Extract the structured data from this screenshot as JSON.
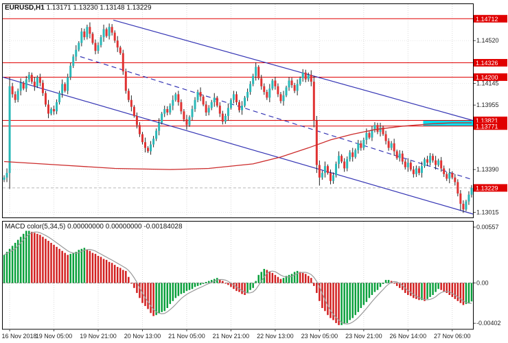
{
  "header": {
    "symbol_period": "EURUSD,H1",
    "quote_line": "1.13171 1.13230 1.13148 1.13229"
  },
  "chart_data": [
    {
      "type": "candlestick",
      "title": "EURUSD,H1",
      "quote_line": "1.13171 1.13230 1.13148 1.13229",
      "quote": {
        "open": "1.13171",
        "high": "1.13230",
        "low": "1.13148",
        "close": "1.13229"
      },
      "ylim": [
        1.1297,
        1.1484
      ],
      "first_open": 1.133,
      "closes": [
        1.1332,
        1.1336,
        1.1412,
        1.1405,
        1.14,
        1.1408,
        1.1415,
        1.141,
        1.1418,
        1.1422,
        1.1416,
        1.1412,
        1.142,
        1.1415,
        1.1406,
        1.1396,
        1.1388,
        1.1392,
        1.139,
        1.1398,
        1.1406,
        1.1414,
        1.1408,
        1.142,
        1.143,
        1.1438,
        1.1444,
        1.145,
        1.146,
        1.1455,
        1.1464,
        1.1458,
        1.145,
        1.1443,
        1.1448,
        1.1455,
        1.1462,
        1.1456,
        1.1464,
        1.1459,
        1.1452,
        1.1446,
        1.1441,
        1.1425,
        1.1408,
        1.14,
        1.1394,
        1.1386,
        1.1378,
        1.137,
        1.1363,
        1.1358,
        1.1355,
        1.1361,
        1.1366,
        1.1373,
        1.138,
        1.1388,
        1.1392,
        1.1389,
        1.1395,
        1.14,
        1.1405,
        1.1398,
        1.139,
        1.1383,
        1.1378,
        1.1385,
        1.1392,
        1.14,
        1.1407,
        1.1403,
        1.1396,
        1.1389,
        1.1393,
        1.1398,
        1.1402,
        1.1395,
        1.1388,
        1.1381,
        1.1386,
        1.1393,
        1.14,
        1.1405,
        1.1398,
        1.1391,
        1.1395,
        1.1402,
        1.1407,
        1.1414,
        1.1421,
        1.1429,
        1.1419,
        1.1412,
        1.1407,
        1.1402,
        1.141,
        1.1417,
        1.1412,
        1.1405,
        1.1399,
        1.1404,
        1.1411,
        1.1417,
        1.1413,
        1.1408,
        1.1414,
        1.1419,
        1.1424,
        1.1418,
        1.1422,
        1.1416,
        1.1382,
        1.1343,
        1.1332,
        1.1336,
        1.1342,
        1.1336,
        1.1329,
        1.1334,
        1.1344,
        1.1351,
        1.1346,
        1.134,
        1.1348,
        1.1354,
        1.135,
        1.1356,
        1.1362,
        1.1358,
        1.1365,
        1.1371,
        1.1367,
        1.1374,
        1.1378,
        1.1372,
        1.1376,
        1.137,
        1.1364,
        1.1358,
        1.1362,
        1.1355,
        1.1349,
        1.1353,
        1.1346,
        1.1341,
        1.1345,
        1.1339,
        1.1335,
        1.134,
        1.1336,
        1.1342,
        1.1348,
        1.1345,
        1.1351,
        1.1347,
        1.1343,
        1.1347,
        1.134,
        1.1335,
        1.1331,
        1.1336,
        1.1332,
        1.1328,
        1.1318,
        1.1309,
        1.1304,
        1.1311,
        1.1317,
        1.13229
      ],
      "special_bars": {
        "2": [
          1.1336,
          1.142,
          1.1322,
          1.1412
        ],
        "112": [
          1.1416,
          1.1421,
          1.1376,
          1.1382
        ],
        "113": [
          1.1382,
          1.1386,
          1.1336,
          1.1343
        ],
        "114": [
          1.1343,
          1.1347,
          1.1325,
          1.1332
        ],
        "165": [
          1.1318,
          1.1321,
          1.1303,
          1.1309
        ],
        "166": [
          1.1309,
          1.1312,
          1.1301,
          1.1304
        ]
      },
      "wick_pattern": [
        0.0002,
        0.0004,
        0.00015,
        0.0003,
        0.00025
      ],
      "bull_color": "#2ab8b8",
      "bear_color": "#e03232",
      "wick_color": "#222222",
      "level_color": "#e00000",
      "trend_color": "#3434b4",
      "levels": [
        {
          "price": 1.14712,
          "label": "1.14712"
        },
        {
          "price": 1.14326,
          "label": "1.14326"
        },
        {
          "price": 1.142,
          "label": "1.14200"
        },
        {
          "price": 1.13821,
          "label": "1.13821"
        },
        {
          "price": 1.13771,
          "label": "1.13771"
        }
      ],
      "current_price": {
        "price": 1.13229,
        "label": "1.13229"
      },
      "axis_labels": [
        {
          "price": 1.1452,
          "label": "1.14520"
        },
        {
          "price": 1.14145,
          "label": "1.14145"
        },
        {
          "price": 1.13955,
          "label": "1.13955"
        },
        {
          "price": 1.1339,
          "label": "1.13390"
        },
        {
          "price": 1.13015,
          "label": "1.13015"
        }
      ],
      "ma": {
        "name": "moving-average",
        "color": "#cc2a2a",
        "points": [
          [
            0,
            1.1346
          ],
          [
            20,
            1.1343
          ],
          [
            40,
            1.134
          ],
          [
            60,
            1.1339
          ],
          [
            74,
            1.134
          ],
          [
            90,
            1.1344
          ],
          [
            100,
            1.135
          ],
          [
            110,
            1.1358
          ],
          [
            118,
            1.1365
          ],
          [
            126,
            1.137
          ],
          [
            134,
            1.1374
          ],
          [
            144,
            1.1377
          ],
          [
            154,
            1.1379
          ],
          [
            162,
            1.138
          ],
          [
            169,
            1.138
          ]
        ]
      },
      "trendlines": [
        {
          "from": [
            40,
            1.147
          ],
          "to": [
            170,
            1.1382
          ],
          "dash": false
        },
        {
          "from": [
            28,
            1.1438
          ],
          "to": [
            170,
            1.133
          ],
          "dash": true
        },
        {
          "from": [
            0,
            1.142
          ],
          "to": [
            170,
            1.13
          ],
          "dash": false
        }
      ],
      "band": {
        "from_bar": 152,
        "to_bar": 170,
        "p1": 1.13821,
        "p2": 1.13771,
        "color": "#00dff0"
      },
      "time_ticks": [
        {
          "bar": 2,
          "label": "16 Nov 2018"
        },
        {
          "bar": 18,
          "label": "19 Nov 05:00"
        },
        {
          "bar": 34,
          "label": "19 Nov 21:00"
        },
        {
          "bar": 50,
          "label": "20 Nov 13:00"
        },
        {
          "bar": 66,
          "label": "21 Nov 05:00"
        },
        {
          "bar": 82,
          "label": "21 Nov 21:00"
        },
        {
          "bar": 98,
          "label": "22 Nov 13:00"
        },
        {
          "bar": 114,
          "label": "23 Nov 05:00"
        },
        {
          "bar": 130,
          "label": "23 Nov 21:00"
        },
        {
          "bar": 146,
          "label": "26 Nov 14:00"
        },
        {
          "bar": 162,
          "label": "27 Nov 06:00"
        }
      ]
    },
    {
      "type": "bar",
      "title": "MACD color(5,34,5)",
      "values_label": "0.00000000 0.00000000 -0.00184028",
      "ylim": [
        -0.00462,
        0.00612
      ],
      "signal_sma": 5,
      "up_color": "#0aa03c",
      "down_color": "#d21f1f",
      "line_color": "#999999",
      "hist": [
        0.0028,
        0.0031,
        0.0034,
        0.0037,
        0.004,
        0.0043,
        0.0046,
        0.0049,
        0.0052,
        0.0052,
        0.0051,
        0.005,
        0.0049,
        0.0048,
        0.0046,
        0.0044,
        0.0042,
        0.004,
        0.0038,
        0.0036,
        0.0034,
        0.0032,
        0.003,
        0.0028,
        0.0029,
        0.003,
        0.0031,
        0.0033,
        0.0034,
        0.0035,
        0.0033,
        0.0032,
        0.003,
        0.0029,
        0.0027,
        0.0026,
        0.0024,
        0.0023,
        0.0021,
        0.002,
        0.0018,
        0.0016,
        0.0015,
        0.0013,
        0.0012,
        0.0006,
        0.0,
        -0.0005,
        -0.001,
        -0.0015,
        -0.002,
        -0.0023,
        -0.0026,
        -0.003,
        -0.0033,
        -0.0032,
        -0.003,
        -0.0029,
        -0.0028,
        -0.0025,
        -0.0021,
        -0.0018,
        -0.0015,
        -0.0013,
        -0.0011,
        -0.001,
        -0.0008,
        -0.0007,
        -0.0006,
        -0.0004,
        -0.0003,
        -0.0002,
        -0.0001,
        0.0001,
        0.0002,
        0.0003,
        0.0004,
        0.0005,
        0.0003,
        0.0002,
        0.0,
        -0.0002,
        -0.0004,
        -0.0006,
        -0.0008,
        -0.0009,
        -0.0011,
        -0.0012,
        -0.001,
        -0.0007,
        -0.0005,
        0.0002,
        0.0008,
        0.0011,
        0.0014,
        0.0013,
        0.0011,
        0.001,
        0.0008,
        0.0006,
        0.0004,
        0.0005,
        0.0007,
        0.0008,
        0.0009,
        0.0011,
        0.0012,
        0.0011,
        0.001,
        0.0009,
        0.0007,
        0.0005,
        -0.0003,
        -0.001,
        -0.0018,
        -0.0025,
        -0.0028,
        -0.0032,
        -0.0035,
        -0.0037,
        -0.004,
        -0.0042,
        -0.0042,
        -0.0041,
        -0.004,
        -0.0037,
        -0.0035,
        -0.0032,
        -0.0029,
        -0.0025,
        -0.0022,
        -0.0019,
        -0.0015,
        -0.0012,
        -0.0009,
        -0.0007,
        -0.0004,
        -0.0001,
        0.0003,
        0.0003,
        0.0002,
        0.0,
        -0.0003,
        -0.0005,
        -0.0007,
        -0.001,
        -0.0012,
        -0.0013,
        -0.0015,
        -0.0016,
        -0.0017,
        -0.0017,
        -0.0018,
        -0.0016,
        -0.0014,
        -0.0012,
        -0.0009,
        -0.0006,
        -0.0007,
        -0.0009,
        -0.001,
        -0.0012,
        -0.0014,
        -0.0016,
        -0.0018,
        -0.002,
        -0.0022,
        -0.0021,
        -0.002,
        -0.00184
      ],
      "axis_labels": [
        {
          "value": 0.00557,
          "label": "0.00557"
        },
        {
          "value": 0,
          "label": "0.00"
        },
        {
          "value": -0.00402,
          "label": "-0.00402"
        }
      ]
    }
  ]
}
